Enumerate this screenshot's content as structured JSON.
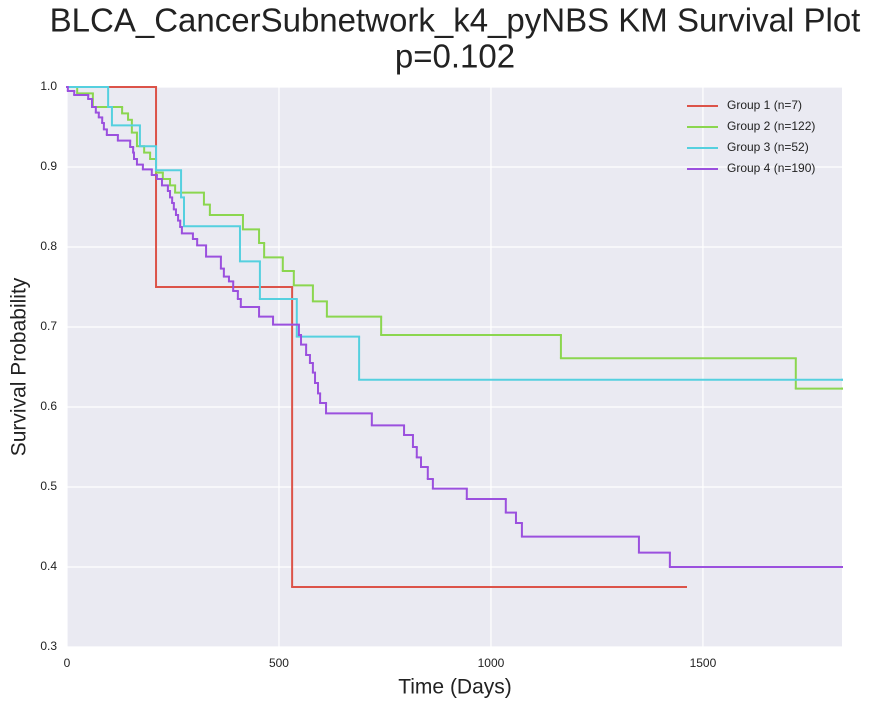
{
  "chart_data": {
    "type": "step",
    "title": "BLCA_CancerSubnetwork_k4_pyNBS KM Survival Plot",
    "subtitle": "p=0.102",
    "x_label": "Time (Days)",
    "y_label": "Survival Probability",
    "xlim": [
      0,
      1828
    ],
    "ylim": [
      0.3,
      1.0
    ],
    "xticks": [
      0,
      500,
      1000,
      1500
    ],
    "yticks": [
      0.3,
      0.4,
      0.5,
      0.6,
      0.7,
      0.8,
      0.9,
      {
        "value": 1,
        "label": "1.0"
      }
    ],
    "grid": true,
    "legend": "upper right",
    "series": [
      {
        "name": "Group 1 (n=7)",
        "color": "#dc5349",
        "x": [
          0,
          210,
          531,
          1460
        ],
        "values": [
          1.0,
          0.75,
          0.375,
          0.375
        ]
      },
      {
        "name": "Group 2 (n=122)",
        "color": "#8bd64f",
        "x": [
          0,
          24,
          61,
          130,
          144,
          153,
          165,
          182,
          196,
          210,
          226,
          243,
          255,
          323,
          337,
          415,
          453,
          465,
          509,
          535,
          580,
          613,
          741,
          1165,
          1719,
          1828
        ],
        "values": [
          1.0,
          0.992,
          0.975,
          0.967,
          0.959,
          0.943,
          0.926,
          0.918,
          0.91,
          0.893,
          0.885,
          0.877,
          0.868,
          0.853,
          0.84,
          0.822,
          0.805,
          0.787,
          0.77,
          0.752,
          0.732,
          0.713,
          0.69,
          0.661,
          0.623,
          0.623
        ]
      },
      {
        "name": "Group 3 (n=52)",
        "color": "#55d0df",
        "x": [
          0,
          97,
          106,
          172,
          210,
          269,
          276,
          408,
          455,
          542,
          689,
          1828
        ],
        "values": [
          1.0,
          0.975,
          0.952,
          0.926,
          0.896,
          0.862,
          0.826,
          0.782,
          0.735,
          0.688,
          0.634,
          0.634
        ]
      },
      {
        "name": "Group 4 (n=190)",
        "color": "#9b50de",
        "x": [
          0,
          2,
          17,
          50,
          59,
          68,
          75,
          83,
          87,
          94,
          120,
          149,
          156,
          158,
          165,
          179,
          200,
          212,
          224,
          238,
          243,
          248,
          252,
          257,
          262,
          267,
          271,
          297,
          307,
          328,
          363,
          370,
          382,
          392,
          403,
          410,
          453,
          486,
          547,
          552,
          564,
          573,
          580,
          585,
          592,
          597,
          611,
          719,
          795,
          816,
          825,
          835,
          851,
          863,
          943,
          1035,
          1059,
          1073,
          1349,
          1422,
          1828
        ],
        "values": [
          1.0,
          0.995,
          0.99,
          0.985,
          0.975,
          0.968,
          0.962,
          0.955,
          0.947,
          0.94,
          0.933,
          0.925,
          0.918,
          0.91,
          0.903,
          0.897,
          0.89,
          0.885,
          0.877,
          0.87,
          0.862,
          0.855,
          0.847,
          0.84,
          0.833,
          0.825,
          0.817,
          0.81,
          0.802,
          0.788,
          0.773,
          0.763,
          0.757,
          0.745,
          0.735,
          0.725,
          0.713,
          0.703,
          0.69,
          0.678,
          0.665,
          0.655,
          0.643,
          0.63,
          0.617,
          0.605,
          0.592,
          0.577,
          0.565,
          0.55,
          0.537,
          0.525,
          0.51,
          0.498,
          0.485,
          0.468,
          0.455,
          0.438,
          0.418,
          0.4,
          0.4
        ]
      }
    ]
  }
}
